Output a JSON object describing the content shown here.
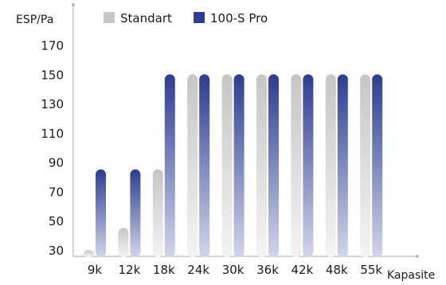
{
  "chart_data": {
    "type": "bar",
    "title": "",
    "xlabel": "Kapasite",
    "ylabel": "ESP/Pa",
    "categories": [
      "9k",
      "12k",
      "18k",
      "24k",
      "30k",
      "36k",
      "42k",
      "48k",
      "55k"
    ],
    "yticks": [
      "30",
      "50",
      "70",
      "90",
      "110",
      "130",
      "150",
      "170"
    ],
    "ylim": [
      25,
      185
    ],
    "grid": false,
    "legend": "top",
    "series": [
      {
        "name": "Standart",
        "values": [
          30,
          45,
          85,
          150,
          150,
          150,
          150,
          150,
          150
        ],
        "color": "#c8c8c8"
      },
      {
        "name": "100-S Pro",
        "values": [
          85,
          85,
          150,
          150,
          150,
          150,
          150,
          150,
          150
        ],
        "color": "#2e3f93"
      }
    ]
  }
}
